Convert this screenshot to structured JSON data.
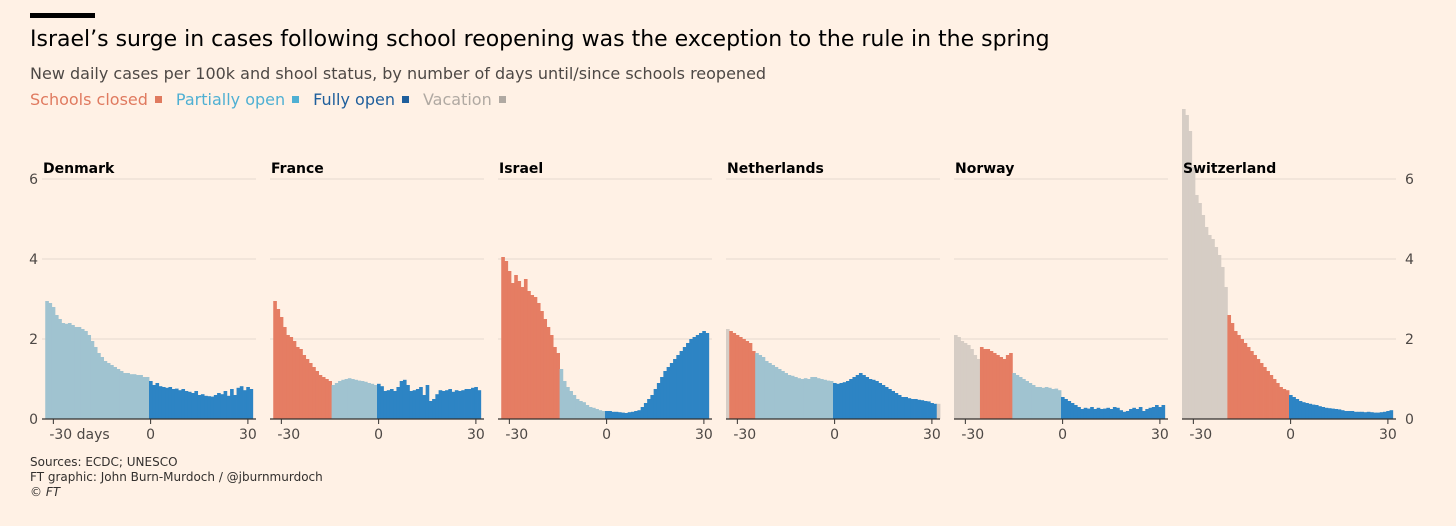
{
  "header": {
    "title": "Israel’s surge in cases following school reopening was the exception to the rule in the spring",
    "subtitle": "New daily cases per 100k and shool status, by number of days until/since schools reopened"
  },
  "legend": [
    {
      "label": "Schools closed",
      "color": "#e07a5f"
    },
    {
      "label": "Partially open",
      "color": "#4fb0d3"
    },
    {
      "label": "Fully open",
      "color": "#1f5f9c"
    },
    {
      "label": "Vacation",
      "color": "#b0a9a2"
    }
  ],
  "footer": {
    "sources": "Sources: ECDC; UNESCO",
    "credit": "FT graphic: John Burn-Murdoch / @jburnmurdoch",
    "copyright": "© FT"
  },
  "chart_data": {
    "type": "bar",
    "xlim": [
      -33,
      32
    ],
    "ylim": [
      0,
      6
    ],
    "y_ticks": [
      0,
      2,
      4,
      6
    ],
    "x_ticks": [
      -30,
      0,
      30
    ],
    "first_x_tick_label": "-30 days",
    "colors": {
      "closed": "#e57d63",
      "partial": "#a0c3d0",
      "full": "#2d84c4",
      "vacation": "#d6cdc5"
    },
    "panels": [
      {
        "name": "Denmark",
        "segments": [
          {
            "status": "partial",
            "x_start": -32,
            "x_end": -1,
            "values": [
              2.95,
              2.9,
              2.8,
              2.6,
              2.5,
              2.4,
              2.38,
              2.4,
              2.35,
              2.3,
              2.3,
              2.25,
              2.2,
              2.1,
              1.95,
              1.8,
              1.65,
              1.55,
              1.45,
              1.4,
              1.35,
              1.3,
              1.25,
              1.2,
              1.15,
              1.15,
              1.12,
              1.12,
              1.1,
              1.1,
              1.05,
              1.05
            ]
          },
          {
            "status": "full",
            "x_start": 0,
            "x_end": 31,
            "values": [
              0.95,
              0.85,
              0.9,
              0.82,
              0.8,
              0.78,
              0.8,
              0.75,
              0.76,
              0.72,
              0.75,
              0.7,
              0.68,
              0.65,
              0.7,
              0.6,
              0.62,
              0.58,
              0.57,
              0.56,
              0.6,
              0.65,
              0.62,
              0.7,
              0.58,
              0.75,
              0.6,
              0.78,
              0.82,
              0.72,
              0.8,
              0.75
            ]
          }
        ]
      },
      {
        "name": "France",
        "segments": [
          {
            "status": "closed",
            "x_start": -32,
            "x_end": -15,
            "values": [
              2.95,
              2.75,
              2.55,
              2.3,
              2.1,
              2.05,
              1.95,
              1.8,
              1.75,
              1.6,
              1.5,
              1.4,
              1.3,
              1.2,
              1.1,
              1.05,
              1.0,
              0.95
            ]
          },
          {
            "status": "partial",
            "x_start": -14,
            "x_end": -1,
            "values": [
              0.85,
              0.9,
              0.95,
              0.98,
              1.0,
              1.02,
              1.0,
              0.98,
              0.96,
              0.95,
              0.93,
              0.9,
              0.88,
              0.85
            ]
          },
          {
            "status": "full",
            "x_start": 0,
            "x_end": 31,
            "values": [
              0.88,
              0.82,
              0.7,
              0.72,
              0.75,
              0.7,
              0.8,
              0.95,
              0.98,
              0.85,
              0.7,
              0.72,
              0.75,
              0.8,
              0.6,
              0.85,
              0.45,
              0.5,
              0.62,
              0.72,
              0.7,
              0.72,
              0.75,
              0.68,
              0.72,
              0.7,
              0.72,
              0.75,
              0.75,
              0.78,
              0.8,
              0.72
            ]
          }
        ]
      },
      {
        "name": "Israel",
        "segments": [
          {
            "status": "closed",
            "x_start": -32,
            "x_end": -15,
            "values": [
              4.05,
              3.95,
              3.7,
              3.4,
              3.6,
              3.45,
              3.3,
              3.5,
              3.2,
              3.1,
              3.05,
              2.9,
              2.7,
              2.5,
              2.3,
              2.1,
              1.8,
              1.65
            ]
          },
          {
            "status": "partial",
            "x_start": -14,
            "x_end": -1,
            "values": [
              1.25,
              0.95,
              0.8,
              0.7,
              0.6,
              0.5,
              0.45,
              0.42,
              0.35,
              0.3,
              0.28,
              0.25,
              0.22,
              0.2
            ]
          },
          {
            "status": "full",
            "x_start": 0,
            "x_end": 31,
            "values": [
              0.2,
              0.2,
              0.18,
              0.18,
              0.17,
              0.16,
              0.15,
              0.17,
              0.18,
              0.2,
              0.22,
              0.3,
              0.4,
              0.5,
              0.6,
              0.75,
              0.9,
              1.05,
              1.2,
              1.3,
              1.4,
              1.5,
              1.6,
              1.7,
              1.8,
              1.9,
              2.0,
              2.05,
              2.1,
              2.15,
              2.2,
              2.15
            ]
          }
        ]
      },
      {
        "name": "Netherlands",
        "segments": [
          {
            "status": "vacation",
            "x_start": -33,
            "x_end": -33,
            "values": [
              2.25
            ]
          },
          {
            "status": "closed",
            "x_start": -32,
            "x_end": -25,
            "values": [
              2.2,
              2.15,
              2.1,
              2.05,
              2.0,
              1.95,
              1.9,
              1.7
            ]
          },
          {
            "status": "partial",
            "x_start": -24,
            "x_end": -1,
            "values": [
              1.65,
              1.6,
              1.55,
              1.45,
              1.4,
              1.35,
              1.3,
              1.25,
              1.2,
              1.15,
              1.1,
              1.08,
              1.05,
              1.02,
              1.0,
              1.02,
              1.0,
              1.05,
              1.05,
              1.02,
              1.0,
              0.98,
              0.96,
              0.95
            ]
          },
          {
            "status": "full",
            "x_start": 0,
            "x_end": 31,
            "values": [
              0.9,
              0.88,
              0.9,
              0.92,
              0.95,
              1.0,
              1.05,
              1.1,
              1.15,
              1.1,
              1.05,
              1.0,
              0.98,
              0.95,
              0.9,
              0.85,
              0.8,
              0.75,
              0.7,
              0.65,
              0.6,
              0.55,
              0.55,
              0.52,
              0.5,
              0.5,
              0.48,
              0.47,
              0.45,
              0.44,
              0.4,
              0.38
            ]
          },
          {
            "status": "vacation",
            "x_start": 32,
            "x_end": 32,
            "values": [
              0.38
            ]
          }
        ]
      },
      {
        "name": "Norway",
        "segments": [
          {
            "status": "vacation",
            "x_start": -33,
            "x_end": -26,
            "values": [
              2.1,
              2.05,
              1.95,
              1.9,
              1.85,
              1.75,
              1.6,
              1.5
            ]
          },
          {
            "status": "closed",
            "x_start": -25,
            "x_end": -16,
            "values": [
              1.8,
              1.75,
              1.75,
              1.7,
              1.65,
              1.6,
              1.55,
              1.5,
              1.6,
              1.65
            ]
          },
          {
            "status": "partial",
            "x_start": -15,
            "x_end": -1,
            "values": [
              1.15,
              1.1,
              1.05,
              1.0,
              0.95,
              0.9,
              0.85,
              0.8,
              0.8,
              0.78,
              0.8,
              0.78,
              0.75,
              0.76,
              0.72
            ]
          },
          {
            "status": "full",
            "x_start": 0,
            "x_end": 31,
            "values": [
              0.55,
              0.5,
              0.45,
              0.4,
              0.35,
              0.3,
              0.25,
              0.28,
              0.26,
              0.3,
              0.25,
              0.28,
              0.25,
              0.26,
              0.28,
              0.25,
              0.3,
              0.28,
              0.22,
              0.18,
              0.2,
              0.25,
              0.28,
              0.25,
              0.3,
              0.2,
              0.25,
              0.28,
              0.3,
              0.35,
              0.3,
              0.35
            ]
          }
        ]
      },
      {
        "name": "Switzerland",
        "segments": [
          {
            "status": "vacation",
            "x_start": -33,
            "x_end": -20,
            "values": [
              7.75,
              7.6,
              7.2,
              6.3,
              5.6,
              5.4,
              5.1,
              4.8,
              4.6,
              4.5,
              4.3,
              4.1,
              3.8,
              3.3
            ]
          },
          {
            "status": "closed",
            "x_start": -19,
            "x_end": -1,
            "values": [
              2.6,
              2.4,
              2.2,
              2.1,
              2.0,
              1.9,
              1.8,
              1.7,
              1.6,
              1.5,
              1.4,
              1.3,
              1.2,
              1.1,
              1.0,
              0.9,
              0.8,
              0.75,
              0.72
            ]
          },
          {
            "status": "full",
            "x_start": 0,
            "x_end": 31,
            "values": [
              0.6,
              0.55,
              0.5,
              0.45,
              0.42,
              0.4,
              0.38,
              0.36,
              0.35,
              0.32,
              0.3,
              0.28,
              0.27,
              0.26,
              0.25,
              0.24,
              0.22,
              0.2,
              0.2,
              0.2,
              0.18,
              0.18,
              0.18,
              0.17,
              0.18,
              0.17,
              0.16,
              0.16,
              0.17,
              0.18,
              0.2,
              0.22
            ]
          }
        ]
      }
    ]
  }
}
